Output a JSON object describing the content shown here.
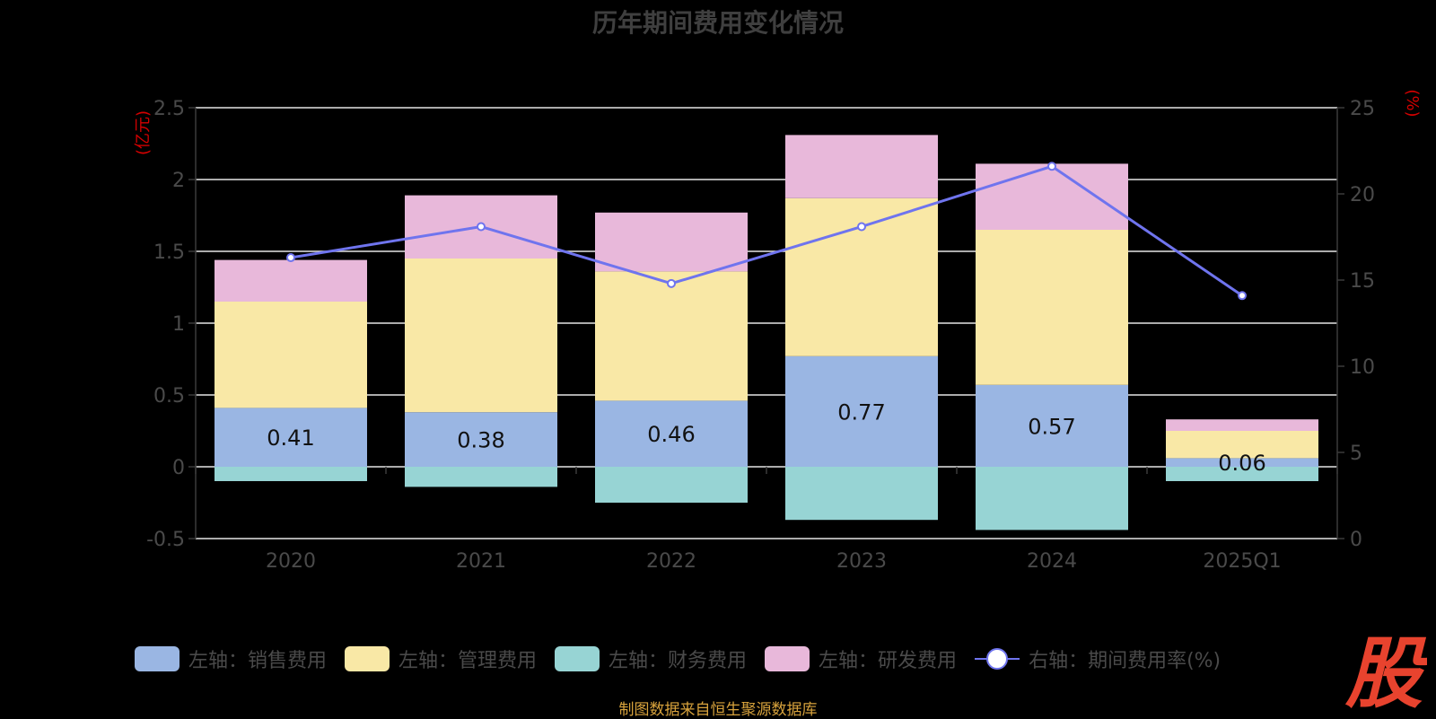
{
  "title": "历年期间费用变化情况",
  "source_text": "制图数据来自恒生聚源数据库",
  "logo_text": "股",
  "legend": [
    {
      "label": "左轴：销售费用",
      "color": "#9ab6e3"
    },
    {
      "label": "左轴：管理费用",
      "color": "#f9e8a6"
    },
    {
      "label": "左轴：财务费用",
      "color": "#97d4d4"
    },
    {
      "label": "左轴：研发费用",
      "color": "#e8b8da"
    },
    {
      "label": "右轴：期间费用率(%)",
      "color": "#6f74ee"
    }
  ],
  "chart_data": {
    "type": "bar",
    "stacked": true,
    "title": "历年期间费用变化情况",
    "categories": [
      "2020",
      "2021",
      "2022",
      "2023",
      "2024",
      "2025Q1"
    ],
    "left_axis": {
      "unit_label": "(亿元)",
      "range": [
        -0.5,
        2.5
      ],
      "ticks": [
        "2.5",
        "2",
        "1.5",
        "1",
        "0.5",
        "0",
        "-0.5"
      ],
      "tick_values": [
        2.5,
        2,
        1.5,
        1,
        0.5,
        0,
        -0.5
      ]
    },
    "right_axis": {
      "unit_label": "(%)",
      "range": [
        0,
        25
      ],
      "ticks": [
        "25",
        "20",
        "15",
        "10",
        "5",
        "0"
      ],
      "tick_values": [
        25,
        20,
        15,
        10,
        5,
        0
      ]
    },
    "grid": true,
    "legend_position": "bottom",
    "series": [
      {
        "name": "左轴：销售费用",
        "color": "#9ab6e3",
        "values": [
          0.41,
          0.38,
          0.46,
          0.77,
          0.57,
          0.06
        ],
        "labels": [
          "0.41",
          "0.38",
          "0.46",
          "0.77",
          "0.57",
          "0.06"
        ]
      },
      {
        "name": "左轴：管理费用",
        "color": "#f9e8a6",
        "values": [
          0.74,
          1.07,
          0.9,
          1.1,
          1.08,
          0.19
        ]
      },
      {
        "name": "左轴：财务费用",
        "color": "#97d4d4",
        "values": [
          -0.1,
          -0.14,
          -0.25,
          -0.37,
          -0.44,
          -0.1
        ]
      },
      {
        "name": "左轴：研发费用",
        "color": "#e8b8da",
        "values": [
          0.29,
          0.44,
          0.41,
          0.44,
          0.46,
          0.08
        ]
      }
    ],
    "line_series": {
      "name": "右轴：期间费用率(%)",
      "axis": "right",
      "color": "#6f74ee",
      "values": [
        16.3,
        18.1,
        14.8,
        18.1,
        21.6,
        14.1
      ]
    }
  }
}
